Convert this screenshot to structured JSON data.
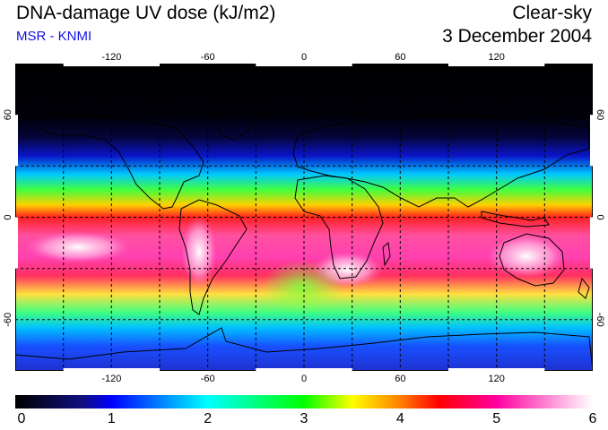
{
  "header": {
    "title": "DNA-damage UV dose (kJ/m2)",
    "source": "MSR - KNMI",
    "condition": "Clear-sky",
    "date": "3 December 2004"
  },
  "map": {
    "longitude_ticks": [
      "-120",
      "-60",
      "0",
      "60",
      "120"
    ],
    "longitude_values": [
      -120,
      -60,
      0,
      60,
      120
    ],
    "latitude_ticks": [
      "60",
      "0",
      "-60"
    ],
    "latitude_values": [
      60,
      0,
      -60
    ],
    "extent": {
      "lon_min": -180,
      "lon_max": 180,
      "lat_min": -90,
      "lat_max": 90
    },
    "grid_spacing_deg": 30
  },
  "colorbar": {
    "labels": [
      "0",
      "1",
      "2",
      "3",
      "4",
      "5",
      "6"
    ],
    "min": 0,
    "max": 6,
    "stops": [
      {
        "value": 0,
        "color": "#000000"
      },
      {
        "value": 0.7,
        "color": "#101080"
      },
      {
        "value": 1.0,
        "color": "#0000ff"
      },
      {
        "value": 2.0,
        "color": "#00ffff"
      },
      {
        "value": 3.0,
        "color": "#00ff00"
      },
      {
        "value": 3.5,
        "color": "#ffff00"
      },
      {
        "value": 4.0,
        "color": "#ff7f00"
      },
      {
        "value": 4.4,
        "color": "#ff0000"
      },
      {
        "value": 5.0,
        "color": "#ff00a0"
      },
      {
        "value": 6.0,
        "color": "#ffffff"
      }
    ]
  }
}
